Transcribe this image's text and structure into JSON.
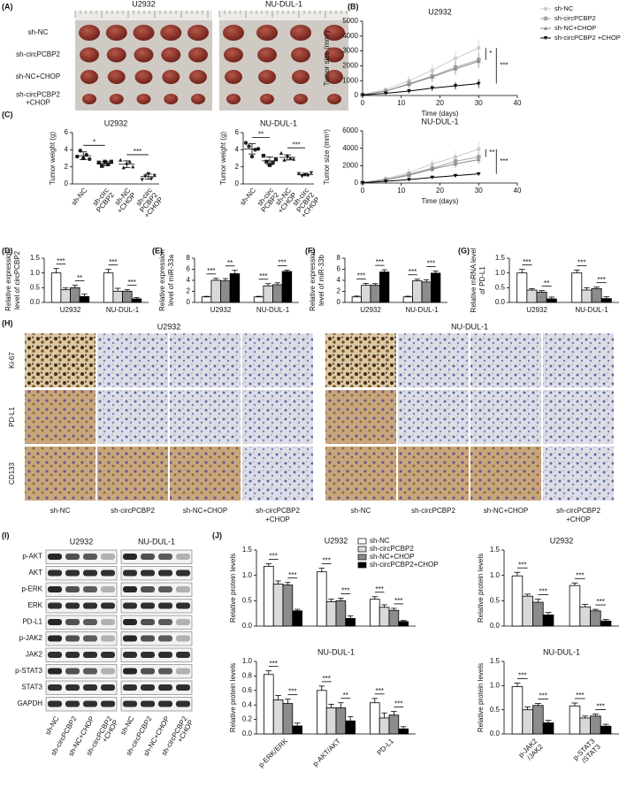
{
  "figure": {
    "panel_labels": [
      "(A)",
      "(B)",
      "(C)",
      "(D)",
      "(E)",
      "(F)",
      "(G)",
      "(H)",
      "(I)",
      "(J)"
    ],
    "tumor_photos": {
      "columns": [
        "U2932",
        "NU-DUL-1"
      ],
      "rows": [
        [
          "sh-NC"
        ],
        [
          "sh-circPCBP2"
        ],
        [
          "sh-NC+CHOP"
        ],
        [
          "sh-circPCBP2",
          "+CHOP"
        ]
      ]
    },
    "ihc": {
      "groups": [
        "U2932",
        "NU-DUL-1"
      ],
      "rows": [
        "Ki-67",
        "PD-L1",
        "CD133"
      ],
      "columns": [
        [
          "sh-NC"
        ],
        [
          "sh-circPCBP2"
        ],
        [
          "sh-NC+CHOP"
        ],
        [
          "sh-circPCBP2",
          "+CHOP"
        ]
      ]
    },
    "western_blot": {
      "groups": [
        "U2932",
        "NU-DUL-1"
      ],
      "rows": [
        "p-AKT",
        "AKT",
        "p-ERK",
        "ERK",
        "PD-L1",
        "p-JAK2",
        "JAK2",
        "p-STAT3",
        "STAT3",
        "GAPDH"
      ],
      "lanes": [
        [
          "sh-NC"
        ],
        [
          "sh-circPCBP2"
        ],
        [
          "sh-NC+CHOP"
        ],
        [
          "sh-circPCBP2",
          "+CHOP"
        ]
      ]
    }
  },
  "chart_data": [
    {
      "type": "line",
      "title": "U2932",
      "xlabel": "Time (days)",
      "ylabel": "Tumor size (mm³)",
      "x": [
        0,
        6,
        12,
        18,
        24,
        30
      ],
      "xlim": [
        0,
        40
      ],
      "xticks": [
        0,
        10,
        20,
        30,
        40
      ],
      "ylim": [
        0,
        5000
      ],
      "yticks": [
        0,
        1000,
        2000,
        3000,
        4000,
        5000
      ],
      "legend": "right",
      "series": [
        {
          "name": "sh-NC",
          "color": "#cdcdcd",
          "marker": "circle",
          "values": [
            50,
            400,
            1000,
            1700,
            2500,
            3200
          ],
          "errors": [
            20,
            150,
            300,
            400,
            500,
            600
          ]
        },
        {
          "name": "sh-circPCBP2",
          "color": "#a6a6a6",
          "marker": "square",
          "values": [
            50,
            300,
            800,
            1300,
            1900,
            2400
          ],
          "errors": [
            20,
            120,
            250,
            350,
            450,
            500
          ]
        },
        {
          "name": "sh-NC+CHOP",
          "color": "#8a8a8a",
          "marker": "triangle",
          "values": [
            50,
            300,
            750,
            1250,
            1800,
            2300
          ],
          "errors": [
            20,
            120,
            250,
            350,
            400,
            450
          ]
        },
        {
          "name": "sh-circPCBP2 +CHOP",
          "color": "#000000",
          "marker": "triangle-down",
          "values": [
            30,
            150,
            300,
            500,
            650,
            800
          ],
          "errors": [
            10,
            60,
            150,
            200,
            250,
            300
          ]
        }
      ],
      "annotations": [
        "*",
        "***"
      ]
    },
    {
      "type": "line",
      "title": "NU-DUL-1",
      "xlabel": "Time (days)",
      "ylabel": "Tumor size (mm³)",
      "x": [
        0,
        6,
        12,
        18,
        24,
        30
      ],
      "xlim": [
        0,
        40
      ],
      "xticks": [
        0,
        10,
        20,
        30,
        40
      ],
      "ylim": [
        0,
        6000
      ],
      "yticks": [
        0,
        2000,
        4000,
        6000
      ],
      "series": [
        {
          "color": "#cdcdcd",
          "marker": "circle",
          "values": [
            50,
            500,
            1200,
            2200,
            3000,
            3900
          ],
          "errors": [
            20,
            200,
            400,
            500,
            700,
            900
          ]
        },
        {
          "color": "#a6a6a6",
          "marker": "square",
          "values": [
            50,
            400,
            1000,
            1700,
            2500,
            3000
          ],
          "errors": [
            20,
            150,
            300,
            400,
            500,
            600
          ]
        },
        {
          "color": "#8a8a8a",
          "marker": "triangle",
          "values": [
            50,
            350,
            900,
            1600,
            2200,
            2700
          ],
          "errors": [
            20,
            150,
            300,
            350,
            450,
            500
          ]
        },
        {
          "color": "#000000",
          "marker": "triangle-down",
          "values": [
            30,
            200,
            400,
            650,
            850,
            1050
          ],
          "errors": [
            10,
            50,
            100,
            100,
            100,
            120
          ]
        }
      ],
      "annotations": [
        "**",
        "***"
      ]
    },
    {
      "type": "dot",
      "title": "U2932",
      "ylabel": "Tumor weight (g)",
      "ylim": [
        0,
        6
      ],
      "yticks": [
        0,
        2,
        4,
        6
      ],
      "color": "#222222",
      "categories": [
        [
          "sh-NC"
        ],
        [
          "sh-circ",
          "PCBP2"
        ],
        [
          "sh-NC",
          "+CHOP"
        ],
        [
          "sh-circ",
          "PCBP2",
          "+CHOP"
        ]
      ],
      "markers": [
        "circle",
        "square",
        "triangle",
        "triangle-down"
      ],
      "points": [
        [
          3.2,
          3.9,
          3.0,
          3.4,
          2.9
        ],
        [
          2.5,
          2.1,
          2.6,
          2.3,
          2.6
        ],
        [
          2.8,
          1.9,
          2.4,
          2.6,
          2.0
        ],
        [
          0.5,
          0.9,
          1.2,
          0.6,
          1.0
        ]
      ],
      "values": [
        3.3,
        2.4,
        2.3,
        0.85
      ],
      "errors": [
        0.45,
        0.25,
        0.4,
        0.3
      ],
      "annotations": [
        "*",
        "***"
      ]
    },
    {
      "type": "dot",
      "title": "NU-DUL-1",
      "ylabel": "Tumor weight (g)",
      "ylim": [
        0,
        6
      ],
      "yticks": [
        0,
        2,
        4,
        6
      ],
      "color": "#222222",
      "categories": [
        [
          "sh-NC"
        ],
        [
          "sh-circ",
          "PCBP2"
        ],
        [
          "sh-NC",
          "+CHOP"
        ],
        [
          "sh-circ",
          "PCBP2",
          "+CHOP"
        ]
      ],
      "markers": [
        "circle",
        "square",
        "triangle",
        "triangle-down"
      ],
      "points": [
        [
          4.8,
          4.4,
          3.2,
          4.0,
          4.1
        ],
        [
          3.3,
          2.6,
          2.2,
          2.5,
          2.9
        ],
        [
          3.6,
          2.8,
          3.3,
          3.0,
          2.9
        ],
        [
          1.2,
          0.9,
          1.1,
          1.0,
          1.3
        ]
      ],
      "values": [
        4.1,
        2.7,
        3.1,
        1.1
      ],
      "errors": [
        0.6,
        0.45,
        0.3,
        0.15
      ],
      "annotations": [
        "**",
        "***"
      ]
    },
    {
      "type": "bar",
      "ylabel": [
        "Relative expression",
        "level of circPCBP2"
      ],
      "categories": [
        "U2932",
        "NU-DUL-1"
      ],
      "ylim": [
        0,
        1.5
      ],
      "yticks": [
        {
          "value": 0,
          "label": "0.0"
        },
        0.5,
        {
          "value": 1,
          "label": "1.0"
        },
        1.5
      ],
      "series": [
        {
          "color": "#ffffff",
          "values": [
            1.0,
            1.0
          ],
          "errors": [
            0.15,
            0.12
          ]
        },
        {
          "color": "#d9d9d9",
          "values": [
            0.43,
            0.38
          ],
          "errors": [
            0.06,
            0.1
          ]
        },
        {
          "color": "#8c8c8c",
          "values": [
            0.5,
            0.38
          ],
          "errors": [
            0.08,
            0.05
          ]
        },
        {
          "color": "#000000",
          "values": [
            0.2,
            0.12
          ],
          "errors": [
            0.08,
            0.04
          ]
        }
      ],
      "annotations": [
        "***",
        "**",
        "***",
        "***"
      ]
    },
    {
      "type": "bar",
      "ylabel": [
        "Relative expression",
        "level of miR-33a"
      ],
      "categories": [
        "U2932",
        "NU-DUL-1"
      ],
      "ylim": [
        0,
        8
      ],
      "yticks": [
        0,
        2,
        4,
        6,
        8
      ],
      "series": [
        {
          "color": "#ffffff",
          "values": [
            1.0,
            1.0
          ],
          "errors": [
            0.1,
            0.1
          ]
        },
        {
          "color": "#d9d9d9",
          "values": [
            4.0,
            3.0
          ],
          "errors": [
            0.35,
            0.4
          ]
        },
        {
          "color": "#8c8c8c",
          "values": [
            3.9,
            3.2
          ],
          "errors": [
            0.4,
            0.35
          ]
        },
        {
          "color": "#000000",
          "values": [
            5.2,
            5.6
          ],
          "errors": [
            0.6,
            0.25
          ]
        }
      ],
      "annotations": [
        "***",
        "**",
        "***",
        "***"
      ]
    },
    {
      "type": "bar",
      "ylabel": [
        "Relative expression",
        "level of miR-33b"
      ],
      "categories": [
        "U2932",
        "NU-DUL-1"
      ],
      "ylim": [
        0,
        8
      ],
      "yticks": [
        0,
        2,
        4,
        6,
        8
      ],
      "series": [
        {
          "color": "#ffffff",
          "values": [
            1.0,
            1.0
          ],
          "errors": [
            0.15,
            0.12
          ]
        },
        {
          "color": "#d9d9d9",
          "values": [
            3.1,
            3.9
          ],
          "errors": [
            0.35,
            0.3
          ]
        },
        {
          "color": "#8c8c8c",
          "values": [
            3.1,
            3.7
          ],
          "errors": [
            0.3,
            0.4
          ]
        },
        {
          "color": "#000000",
          "values": [
            5.5,
            5.3
          ],
          "errors": [
            0.4,
            0.4
          ]
        }
      ],
      "annotations": [
        "***",
        "***",
        "***",
        "***"
      ]
    },
    {
      "type": "bar",
      "ylabel": [
        "Relative mRNA level",
        "of PD-L1"
      ],
      "categories": [
        "U2932",
        "NU-DUL-1"
      ],
      "ylim": [
        0,
        1.5
      ],
      "yticks": [
        {
          "value": 0,
          "label": "0.0"
        },
        0.5,
        {
          "value": 1,
          "label": "1.0"
        },
        1.5
      ],
      "series": [
        {
          "color": "#ffffff",
          "values": [
            1.0,
            1.0
          ],
          "errors": [
            0.12,
            0.1
          ]
        },
        {
          "color": "#d9d9d9",
          "values": [
            0.42,
            0.42
          ],
          "errors": [
            0.05,
            0.08
          ]
        },
        {
          "color": "#8c8c8c",
          "values": [
            0.35,
            0.47
          ],
          "errors": [
            0.05,
            0.05
          ]
        },
        {
          "color": "#000000",
          "values": [
            0.12,
            0.13
          ],
          "errors": [
            0.06,
            0.06
          ]
        }
      ],
      "annotations": [
        "***",
        "**",
        "***",
        "***"
      ]
    },
    {
      "type": "bar",
      "title": "U2932",
      "ylabel": "Relative protein levels",
      "categories": [
        null,
        null,
        null
      ],
      "legend": "top right",
      "ylim": [
        0,
        1.5
      ],
      "yticks": [
        {
          "value": 0,
          "label": "0.0"
        },
        0.5,
        {
          "value": 1,
          "label": "1.0"
        },
        1.5
      ],
      "series": [
        {
          "name": "sh-NC",
          "color": "#ffffff",
          "values": [
            1.18,
            1.07,
            0.53
          ],
          "errors": [
            0.05,
            0.07,
            0.05
          ]
        },
        {
          "name": "sh-circPCBP2",
          "color": "#d9d9d9",
          "values": [
            0.83,
            0.48,
            0.37
          ],
          "errors": [
            0.06,
            0.05,
            0.05
          ]
        },
        {
          "name": "sh-NC+CHOP",
          "color": "#8c8c8c",
          "values": [
            0.81,
            0.5,
            0.31
          ],
          "errors": [
            0.05,
            0.05,
            0.04
          ]
        },
        {
          "name": "sh-circPCBP2+CHOP",
          "color": "#000000",
          "values": [
            0.3,
            0.15,
            0.09
          ],
          "errors": [
            0.03,
            0.05,
            0.02
          ]
        }
      ],
      "annotations": [
        "***",
        "***",
        "***",
        "***",
        "***",
        "***"
      ]
    },
    {
      "type": "bar",
      "title": "U2932",
      "ylabel": "Relative protein levels",
      "categories": [
        null,
        null
      ],
      "ylim": [
        0,
        1.5
      ],
      "yticks": [
        {
          "value": 0,
          "label": "0.0"
        },
        0.5,
        {
          "value": 1,
          "label": "1.0"
        },
        1.5
      ],
      "series": [
        {
          "color": "#ffffff",
          "values": [
            0.99,
            0.8
          ],
          "errors": [
            0.07,
            0.05
          ]
        },
        {
          "color": "#d9d9d9",
          "values": [
            0.59,
            0.38
          ],
          "errors": [
            0.04,
            0.05
          ]
        },
        {
          "color": "#8c8c8c",
          "values": [
            0.47,
            0.3
          ],
          "errors": [
            0.06,
            0.03
          ]
        },
        {
          "color": "#000000",
          "values": [
            0.22,
            0.1
          ],
          "errors": [
            0.05,
            0.03
          ]
        }
      ],
      "annotations": [
        "***",
        "***",
        "***",
        "***"
      ]
    },
    {
      "type": "bar",
      "title": "NU-DUL-1",
      "ylabel": "Relative protein levels",
      "categories": [
        "p-ERK/ERK",
        "p-AKT/AKT",
        "PD-L1"
      ],
      "ylim": [
        0,
        1
      ],
      "yticks": [
        {
          "value": 0,
          "label": "0.0"
        },
        0.2,
        0.4,
        0.6,
        0.8,
        {
          "value": 1,
          "label": "1.0"
        }
      ],
      "series": [
        {
          "color": "#ffffff",
          "values": [
            0.82,
            0.6,
            0.43
          ],
          "errors": [
            0.05,
            0.06,
            0.06
          ]
        },
        {
          "color": "#d9d9d9",
          "values": [
            0.47,
            0.36,
            0.22
          ],
          "errors": [
            0.06,
            0.05,
            0.07
          ]
        },
        {
          "color": "#8c8c8c",
          "values": [
            0.42,
            0.36,
            0.26
          ],
          "errors": [
            0.06,
            0.07,
            0.05
          ]
        },
        {
          "color": "#000000",
          "values": [
            0.11,
            0.18,
            0.07
          ],
          "errors": [
            0.04,
            0.06,
            0.03
          ]
        }
      ],
      "annotations": [
        "***",
        "***",
        "***",
        "**",
        "***",
        "***"
      ]
    },
    {
      "type": "bar",
      "title": "NU-DUL-1",
      "ylabel": "Relative protein levels",
      "categories": [
        [
          "p-JAK2",
          "/JAK2"
        ],
        [
          "p-STAT3",
          "/STAT3"
        ]
      ],
      "ylim": [
        0,
        1.5
      ],
      "yticks": [
        {
          "value": 0,
          "label": "0.0"
        },
        0.5,
        {
          "value": 1,
          "label": "1.0"
        },
        1.5
      ],
      "series": [
        {
          "color": "#ffffff",
          "values": [
            0.98,
            0.58
          ],
          "errors": [
            0.07,
            0.06
          ]
        },
        {
          "color": "#d9d9d9",
          "values": [
            0.5,
            0.33
          ],
          "errors": [
            0.06,
            0.04
          ]
        },
        {
          "color": "#8c8c8c",
          "values": [
            0.59,
            0.37
          ],
          "errors": [
            0.04,
            0.04
          ]
        },
        {
          "color": "#000000",
          "values": [
            0.23,
            0.16
          ],
          "errors": [
            0.05,
            0.04
          ]
        }
      ],
      "annotations": [
        "***",
        "***",
        "***",
        "***"
      ]
    }
  ]
}
